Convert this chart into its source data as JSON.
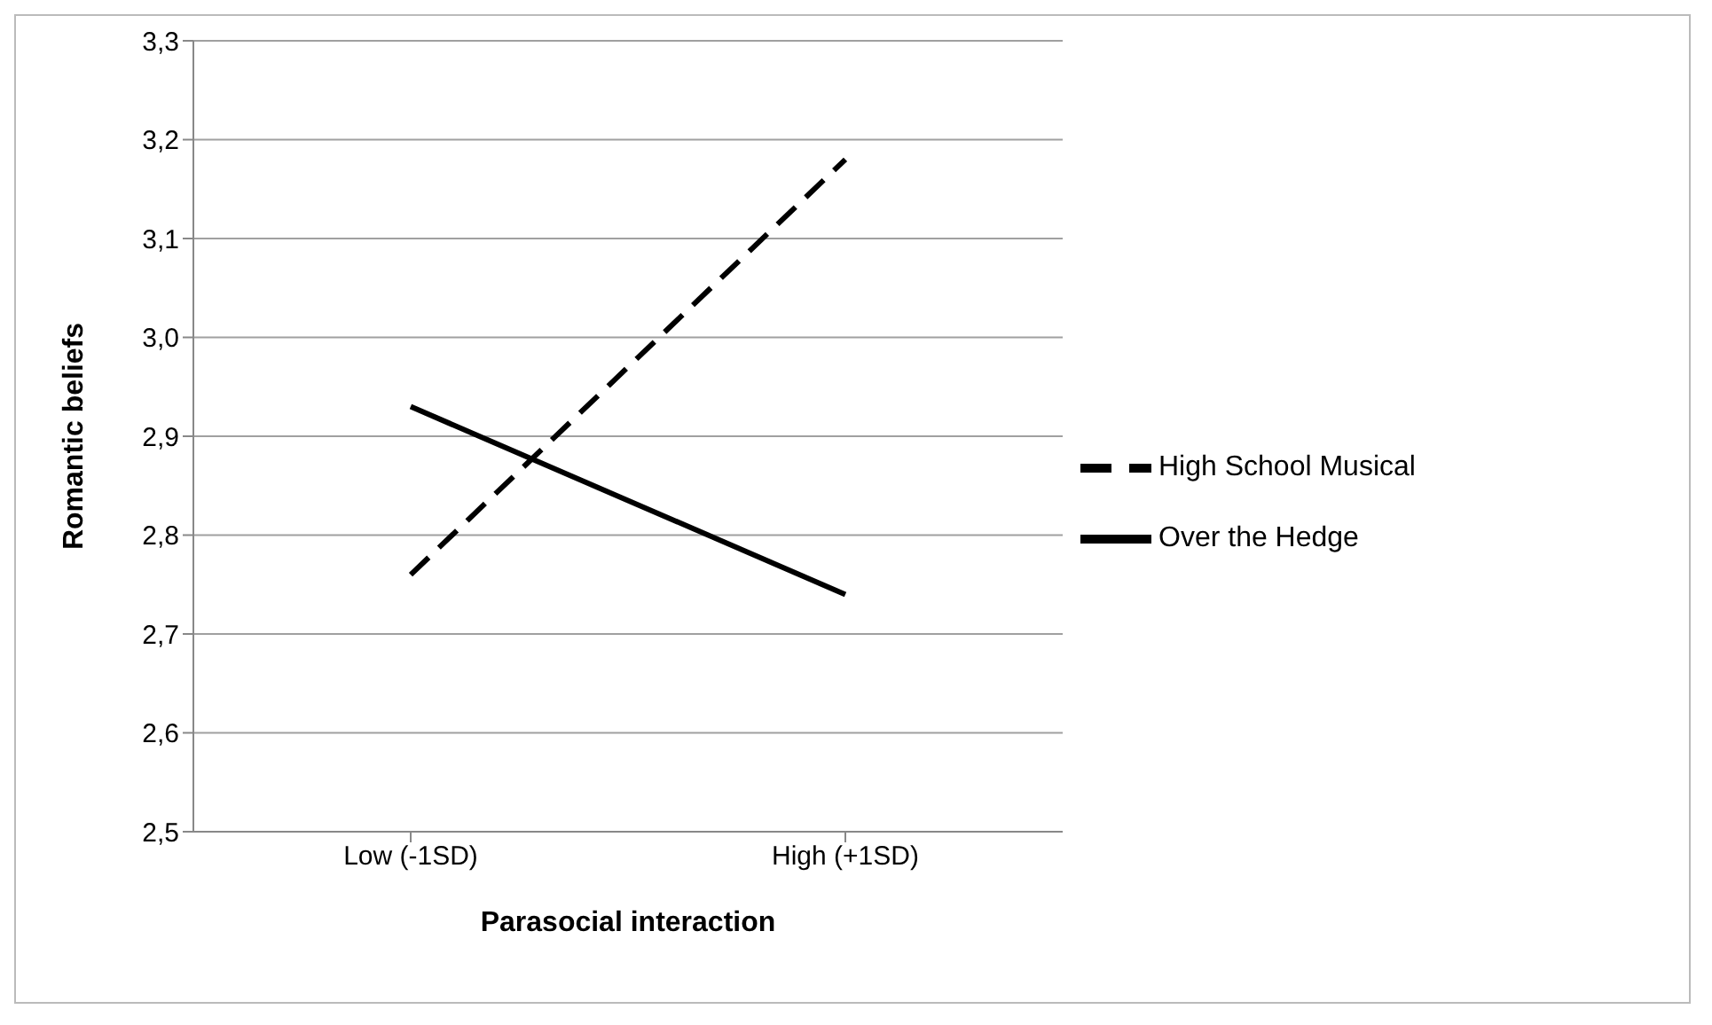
{
  "chart_data": {
    "type": "line",
    "xlabel": "Parasocial interaction",
    "ylabel": "Romantic beliefs",
    "categories": [
      "Low (-1SD)",
      "High (+1SD)"
    ],
    "series": [
      {
        "name": "Over the Hedge",
        "color": "#000000",
        "values": [
          2.93,
          2.74
        ],
        "line_style": "solid"
      },
      {
        "name": "High School Musical",
        "color": "#000000",
        "values": [
          2.76,
          3.18
        ],
        "line_style": "dashed"
      }
    ],
    "ylim": [
      2.5,
      3.3
    ],
    "yticks": [
      {
        "value": 2.5,
        "label": "2,5"
      },
      {
        "value": 2.6,
        "label": "2,6"
      },
      {
        "value": 2.7,
        "label": "2,7"
      },
      {
        "value": 2.8,
        "label": "2,8"
      },
      {
        "value": 2.9,
        "label": "2,9"
      },
      {
        "value": 3.0,
        "label": "3,0"
      },
      {
        "value": 3.1,
        "label": "3,1"
      },
      {
        "value": 3.2,
        "label": "3,2"
      },
      {
        "value": 3.3,
        "label": "3,3"
      }
    ],
    "grid": "y",
    "legend": "right",
    "marker": "none"
  }
}
